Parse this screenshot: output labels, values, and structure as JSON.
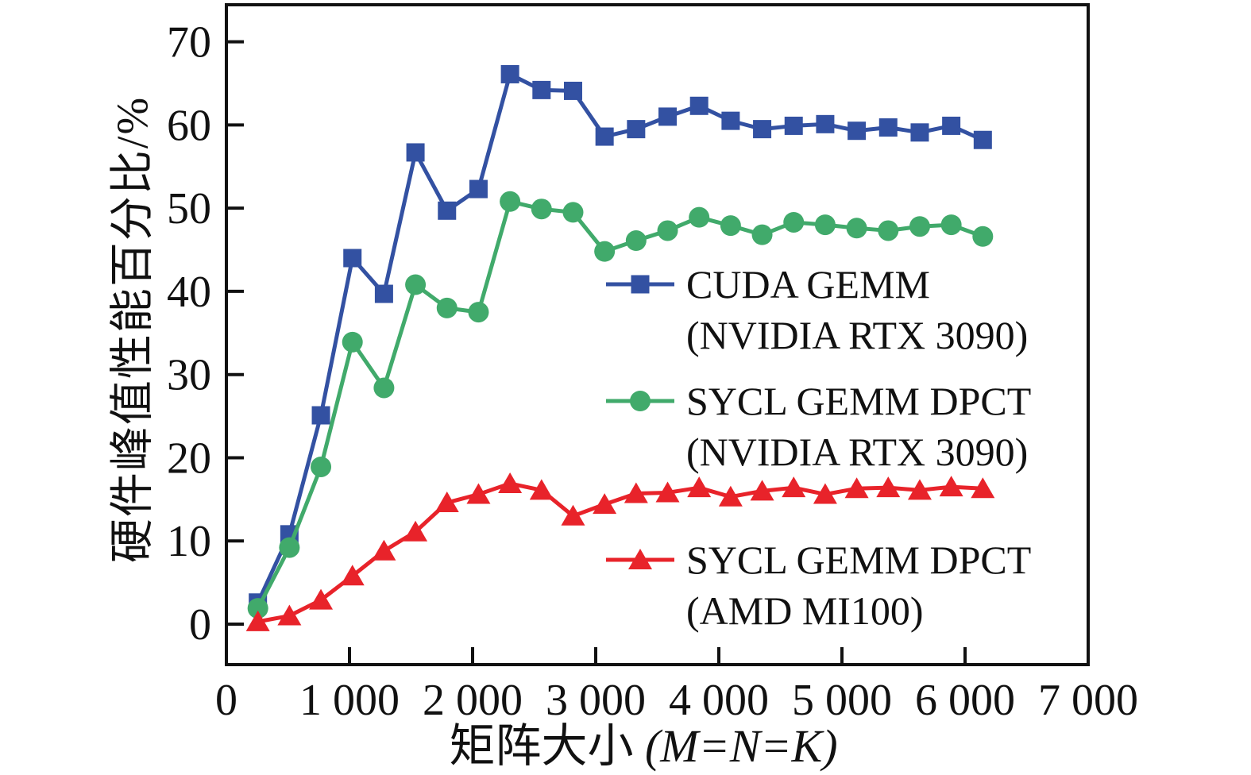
{
  "chart_data": {
    "type": "line",
    "title": "",
    "xlabel": "矩阵大小 (M=N=K)",
    "xlabel_cjk": "矩阵大小 ",
    "xlabel_math": "(M=N=K)",
    "ylabel": "硬件峰值性能百分比/%",
    "xlim": [
      0,
      7000
    ],
    "ylim": [
      -5,
      74.5
    ],
    "x_ticks": [
      0,
      1000,
      2000,
      3000,
      4000,
      5000,
      6000,
      7000
    ],
    "x_tick_labels": [
      "0",
      "1 000",
      "2 000",
      "3 000",
      "4 000",
      "5 000",
      "6 000",
      "7 000"
    ],
    "y_ticks": [
      0,
      10,
      20,
      30,
      40,
      50,
      60,
      70
    ],
    "y_tick_labels": [
      "0",
      "10",
      "20",
      "30",
      "40",
      "50",
      "60",
      "70"
    ],
    "grid": false,
    "legend_position": "inside right",
    "axis_color": "#111111",
    "x": [
      256,
      512,
      768,
      1024,
      1280,
      1536,
      1792,
      2048,
      2304,
      2560,
      2816,
      3072,
      3328,
      3584,
      3840,
      4096,
      4352,
      4608,
      4864,
      5120,
      5376,
      5632,
      5888,
      6144
    ],
    "series": [
      {
        "name": "CUDA GEMM (NVIDIA RTX 3090)",
        "label_line1": "CUDA GEMM",
        "label_line2": "(NVIDIA RTX 3090)",
        "marker": "square",
        "color": "#3351a2",
        "values": [
          2.6,
          10.8,
          25.1,
          44.0,
          39.7,
          56.7,
          49.7,
          52.3,
          66.1,
          64.2,
          64.1,
          58.6,
          59.5,
          61.0,
          62.3,
          60.5,
          59.5,
          59.9,
          60.1,
          59.3,
          59.7,
          59.1,
          59.9,
          58.2
        ]
      },
      {
        "name": "SYCL GEMM DPCT (NVIDIA RTX 3090)",
        "label_line1": "SYCL GEMM DPCT",
        "label_line2": "(NVIDIA RTX 3090)",
        "marker": "circle",
        "color": "#41aa6b",
        "values": [
          1.9,
          9.2,
          18.9,
          33.9,
          28.4,
          40.8,
          38.0,
          37.5,
          50.8,
          49.9,
          49.5,
          44.8,
          46.1,
          47.3,
          48.9,
          47.9,
          46.8,
          48.3,
          48.0,
          47.6,
          47.3,
          47.8,
          48.0,
          46.6
        ]
      },
      {
        "name": "SYCL GEMM DPCT (AMD MI100)",
        "label_line1": "SYCL GEMM DPCT",
        "label_line2": "(AMD MI100)",
        "marker": "triangle",
        "color": "#e8232a",
        "values": [
          0.3,
          1.0,
          2.9,
          5.8,
          8.8,
          11.1,
          14.6,
          15.6,
          16.9,
          16.1,
          13.0,
          14.4,
          15.7,
          15.8,
          16.4,
          15.3,
          16.0,
          16.4,
          15.6,
          16.3,
          16.4,
          16.1,
          16.5,
          16.3
        ]
      }
    ]
  }
}
